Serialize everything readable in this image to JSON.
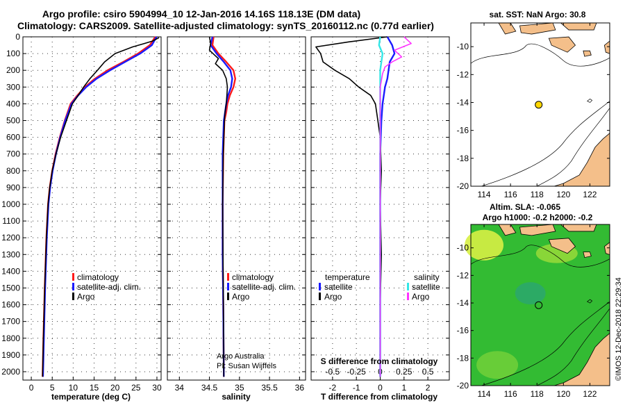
{
  "header": {
    "line1": "Argo profile: csiro 5904994_10 12-Jan-2016 14.16S 118.13E (DM data)",
    "line2": "Climatology: CARS2009. Satellite-adjusted climatology: synTS_20160112.nc (0.77d earlier)"
  },
  "colors": {
    "climatology": "#ff1a1a",
    "satellite": "#1a1aff",
    "argo": "#000000",
    "sat_salinity": "#33e6e6",
    "argo_salinity": "#ff33ff",
    "land": "#f4bf8a",
    "ocean_main": "#33bb33",
    "ocean_high": "#d7ef44"
  },
  "chart_data": [
    {
      "type": "line",
      "panel": "temperature",
      "xlabel": "temperature (deg C)",
      "ylabel": "",
      "xlim": [
        -2,
        31
      ],
      "ylim": [
        2050,
        0
      ],
      "x_ticks": [
        0,
        5,
        10,
        15,
        20,
        25,
        30
      ],
      "y_ticks": [
        0,
        100,
        200,
        300,
        400,
        500,
        600,
        700,
        800,
        900,
        1000,
        1100,
        1200,
        1300,
        1400,
        1500,
        1600,
        1700,
        1800,
        1900,
        2000
      ],
      "grid": true,
      "legend": [
        "climatology",
        "satellite-adj. clim.",
        "Argo"
      ],
      "series": [
        {
          "name": "climatology",
          "color": "#ff1a1a",
          "x": [
            29.6,
            28.3,
            25.5,
            22.0,
            18.2,
            15.2,
            12.8,
            11.0,
            9.4,
            8.0,
            6.8,
            5.8,
            5.0,
            4.4,
            4.0,
            3.6,
            3.2,
            2.9,
            2.7
          ],
          "y": [
            0,
            50,
            100,
            150,
            200,
            250,
            300,
            350,
            400,
            500,
            600,
            700,
            800,
            900,
            1000,
            1200,
            1500,
            1800,
            2030
          ]
        },
        {
          "name": "satellite-adj. clim.",
          "color": "#1a1aff",
          "x": [
            29.9,
            28.8,
            26.0,
            22.4,
            18.8,
            15.6,
            13.1,
            11.2,
            9.6,
            8.1,
            6.9,
            5.9,
            5.1,
            4.5,
            4.1,
            3.7,
            3.3,
            3.0,
            2.8
          ],
          "y": [
            0,
            50,
            100,
            150,
            200,
            250,
            300,
            350,
            400,
            500,
            600,
            700,
            800,
            900,
            1000,
            1200,
            1500,
            1800,
            2030
          ]
        },
        {
          "name": "Argo",
          "color": "#000000",
          "x": [
            30.5,
            29.0,
            27.0,
            24.2,
            20.0,
            17.5,
            15.8,
            14.0,
            12.5,
            11.2,
            9.8,
            8.4,
            7.0,
            5.9,
            5.0,
            4.4,
            4.0,
            3.6,
            3.2,
            2.9,
            2.7
          ],
          "y": [
            5,
            25,
            40,
            60,
            100,
            150,
            200,
            250,
            300,
            350,
            400,
            500,
            600,
            700,
            800,
            900,
            1000,
            1200,
            1500,
            1800,
            2030
          ]
        }
      ]
    },
    {
      "type": "line",
      "panel": "salinity",
      "xlabel": "salinity",
      "ylabel": "",
      "xlim": [
        33.8,
        36.1
      ],
      "ylim": [
        2050,
        0
      ],
      "x_ticks": [
        34,
        34.5,
        35,
        35.5,
        36
      ],
      "x_tick_labels": [
        "34",
        "34.5",
        "35",
        "35.5",
        "36"
      ],
      "grid": true,
      "legend": [
        "climatology",
        "satellite-adj. clim.",
        "Argo"
      ],
      "caption": [
        "Argo Australia",
        "PI: Susan Wijffels"
      ],
      "series": [
        {
          "name": "climatology",
          "color": "#ff1a1a",
          "x": [
            34.57,
            34.55,
            34.65,
            34.78,
            34.9,
            34.93,
            34.9,
            34.84,
            34.8,
            34.78,
            34.75,
            34.73,
            34.72,
            34.72,
            34.73,
            34.74
          ],
          "y": [
            0,
            50,
            100,
            150,
            200,
            250,
            300,
            350,
            400,
            450,
            500,
            700,
            1000,
            1300,
            1600,
            2030
          ]
        },
        {
          "name": "satellite-adj. clim.",
          "color": "#1a1aff",
          "x": [
            34.55,
            34.52,
            34.62,
            34.74,
            34.85,
            34.88,
            34.86,
            34.81,
            34.78,
            34.76,
            34.74,
            34.72,
            34.72,
            34.72,
            34.73,
            34.74
          ],
          "y": [
            0,
            50,
            100,
            150,
            200,
            250,
            300,
            350,
            400,
            450,
            500,
            700,
            1000,
            1300,
            1600,
            2030
          ]
        },
        {
          "name": "Argo",
          "color": "#000000",
          "x": [
            34.5,
            34.52,
            34.5,
            34.65,
            34.6,
            34.72,
            34.78,
            34.8,
            34.79,
            34.78,
            34.76,
            34.75,
            34.73,
            34.72,
            34.73,
            34.74
          ],
          "y": [
            0,
            40,
            80,
            130,
            160,
            200,
            250,
            300,
            350,
            400,
            450,
            500,
            700,
            1000,
            1500,
            2030
          ]
        }
      ]
    },
    {
      "type": "line",
      "panel": "difference",
      "xlabel": "T difference from climatology",
      "ylabel": "",
      "secondary_label": "S difference from climatology",
      "xlim": [
        -2.9,
        2.9
      ],
      "ylim": [
        2050,
        0
      ],
      "x_ticks": [
        -2,
        -1,
        0,
        1,
        2
      ],
      "s_ticks": [
        "-0.5",
        "-0.25",
        "0",
        "0.25",
        "0.5"
      ],
      "grid": true,
      "legend_temperature": {
        "title": "temperature",
        "items": [
          "satellite",
          "Argo"
        ]
      },
      "legend_salinity": {
        "title": "salinity",
        "items": [
          "satellite",
          "Argo"
        ]
      },
      "series": [
        {
          "name": "temperature satellite",
          "color": "#1a1aff",
          "x": [
            0.3,
            0.5,
            0.6,
            0.4,
            0.35,
            0.3,
            0.2,
            0.1,
            0.05,
            0.0,
            0.0,
            0.0
          ],
          "y": [
            0,
            50,
            100,
            150,
            200,
            250,
            300,
            400,
            500,
            700,
            1000,
            2030
          ]
        },
        {
          "name": "temperature Argo",
          "color": "#000000",
          "x": [
            0.3,
            -1.3,
            -2.7,
            -2.5,
            -2.4,
            -1.9,
            -1.3,
            -0.9,
            -0.4,
            -0.2,
            -0.1,
            0.0,
            0.05,
            0.0,
            0.05,
            0.0,
            0.0
          ],
          "y": [
            0,
            30,
            60,
            100,
            150,
            200,
            250,
            300,
            350,
            400,
            500,
            600,
            800,
            1000,
            1300,
            1600,
            2030
          ]
        },
        {
          "name": "salinity satellite",
          "color": "#33e6e6",
          "x": [
            0.0,
            -0.05,
            0.1,
            0.05,
            0.0,
            0.0,
            0.0,
            0.0
          ],
          "y": [
            0,
            50,
            100,
            150,
            200,
            300,
            600,
            2030
          ]
        },
        {
          "name": "salinity Argo",
          "color": "#ff33ff",
          "x": [
            1.0,
            1.3,
            0.6,
            0.9,
            0.5,
            0.2,
            0.1,
            0.0,
            0.0,
            0.0
          ],
          "y": [
            0,
            40,
            80,
            120,
            150,
            180,
            220,
            300,
            600,
            2030
          ]
        }
      ]
    }
  ],
  "maps": [
    {
      "title": "sat. SST: NaN Argo: 30.8",
      "x_ticks": [
        "114",
        "116",
        "118",
        "120",
        "122"
      ],
      "y_ticks": [
        "-10",
        "-12",
        "-14",
        "-16",
        "-18",
        "-20"
      ],
      "lon_range": [
        113,
        123.5
      ],
      "lat_range": [
        -20,
        -8.3
      ],
      "float_position": [
        118.13,
        -14.16
      ]
    },
    {
      "title_line1": "Altim. SLA: -0.065",
      "title_line2": "Argo h1000: -0.2 h2000: -0.2",
      "x_ticks": [
        "114",
        "116",
        "118",
        "120",
        "122"
      ],
      "y_ticks": [
        "-10",
        "-12",
        "-14",
        "-16",
        "-18",
        "-20"
      ],
      "lon_range": [
        113,
        123.5
      ],
      "lat_range": [
        -20,
        -8.3
      ],
      "float_position": [
        118.13,
        -14.16
      ]
    }
  ],
  "footer": {
    "credit": "©IMOS 12-Dec-2018 22:29:34"
  }
}
